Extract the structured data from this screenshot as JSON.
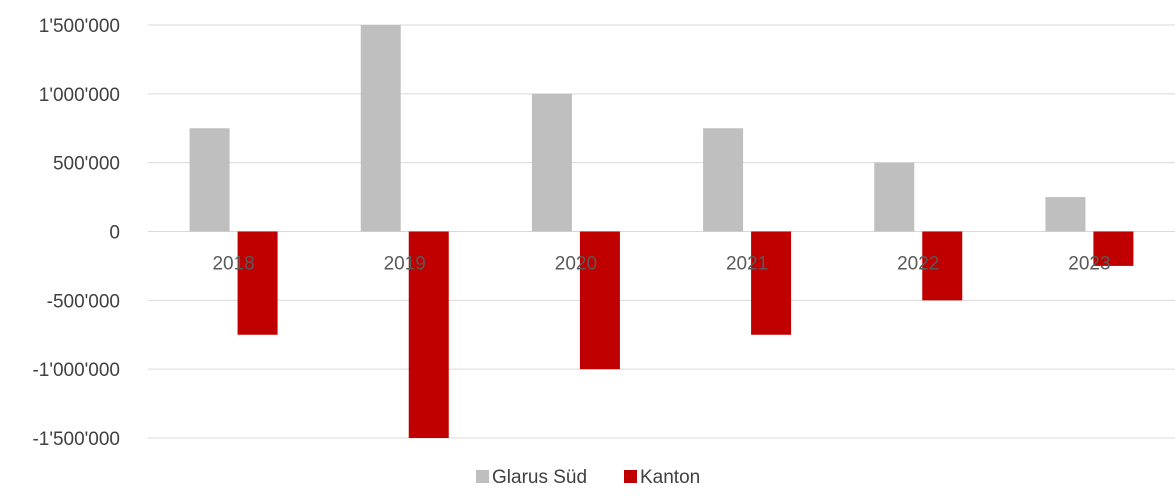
{
  "chart_data": {
    "type": "bar",
    "categories": [
      "2018",
      "2019",
      "2020",
      "2021",
      "2022",
      "2023"
    ],
    "series": [
      {
        "name": "Glarus Süd",
        "color": "#bfbfbf",
        "values": [
          750000,
          1500000,
          1000000,
          750000,
          500000,
          250000
        ]
      },
      {
        "name": "Kanton",
        "color": "#c00000",
        "values": [
          -750000,
          -1500000,
          -1000000,
          -750000,
          -500000,
          -250000
        ]
      }
    ],
    "yticks": [
      "1'500'000",
      "1'000'000",
      "500'000",
      "0",
      "-500'000",
      "-1'000'000",
      "-1'500'000"
    ],
    "ylim": [
      -1500000,
      1500000
    ],
    "grid": true,
    "legend_position": "bottom"
  }
}
